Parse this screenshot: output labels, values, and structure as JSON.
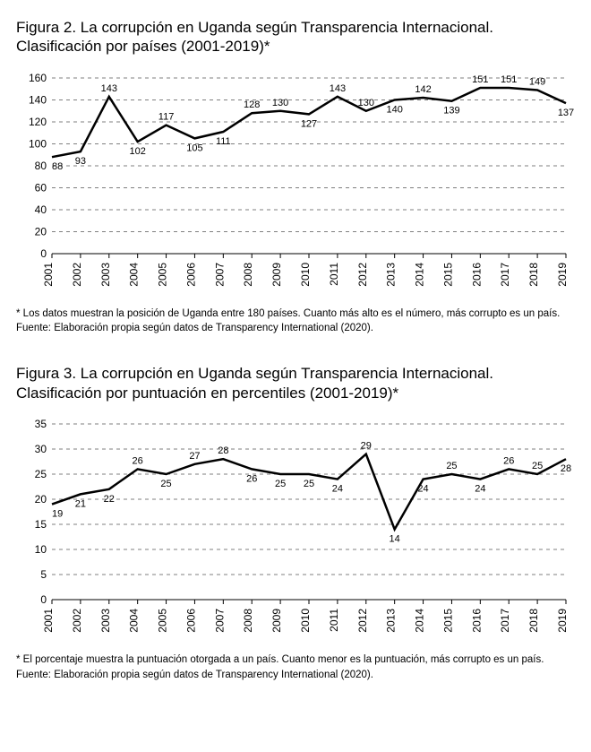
{
  "figure2": {
    "title": "Figura 2. La corrupción en Uganda según Transparencia Internacional. Clasificación por países (2001-2019)*",
    "type": "line",
    "years": [
      "2001",
      "2002",
      "2003",
      "2004",
      "2005",
      "2006",
      "2007",
      "2008",
      "2009",
      "2010",
      "2011",
      "2012",
      "2013",
      "2014",
      "2015",
      "2016",
      "2017",
      "2018",
      "2019"
    ],
    "values": [
      88,
      93,
      143,
      102,
      117,
      105,
      111,
      128,
      130,
      127,
      143,
      130,
      140,
      142,
      139,
      151,
      151,
      149,
      137
    ],
    "label_pos": [
      "below",
      "below",
      "above",
      "below",
      "above",
      "below",
      "below",
      "above",
      "above",
      "below",
      "above",
      "above",
      "below",
      "above",
      "below",
      "above",
      "above",
      "above",
      "below"
    ],
    "ylim": [
      0,
      160
    ],
    "ytick_step": 20,
    "line_color": "#000000",
    "grid_color": "#000000",
    "background_color": "#ffffff",
    "label_fontsize": 11,
    "axis_fontsize": 12,
    "footnote": "* Los datos muestran la posición de Uganda entre 180 países. Cuanto más alto es el número, más corrupto es un país.",
    "source": "Fuente: Elaboración propia según datos de Transparency International (2020)."
  },
  "figure3": {
    "title": "Figura 3. La corrupción en Uganda según Transparencia Internacional. Clasificación por puntuación en percentiles (2001-2019)*",
    "type": "line",
    "years": [
      "2001",
      "2002",
      "2003",
      "2004",
      "2005",
      "2006",
      "2007",
      "2008",
      "2009",
      "2010",
      "2011",
      "2012",
      "2013",
      "2014",
      "2015",
      "2016",
      "2017",
      "2018",
      "2019"
    ],
    "values": [
      19,
      21,
      22,
      26,
      25,
      27,
      28,
      26,
      25,
      25,
      24,
      29,
      14,
      24,
      25,
      24,
      26,
      25,
      28
    ],
    "label_pos": [
      "below",
      "below",
      "below",
      "above",
      "below",
      "above",
      "above",
      "below",
      "below",
      "below",
      "below",
      "above",
      "below",
      "below",
      "above",
      "below",
      "above",
      "above",
      "below"
    ],
    "ylim": [
      0,
      35
    ],
    "ytick_step": 5,
    "line_color": "#000000",
    "grid_color": "#000000",
    "background_color": "#ffffff",
    "label_fontsize": 11,
    "axis_fontsize": 12,
    "footnote": "* El porcentaje muestra la puntuación otorgada a un país. Cuanto menor es la puntuación, más corrupto es un país.",
    "source": "Fuente: Elaboración propia según datos de Transparency International (2020)."
  }
}
